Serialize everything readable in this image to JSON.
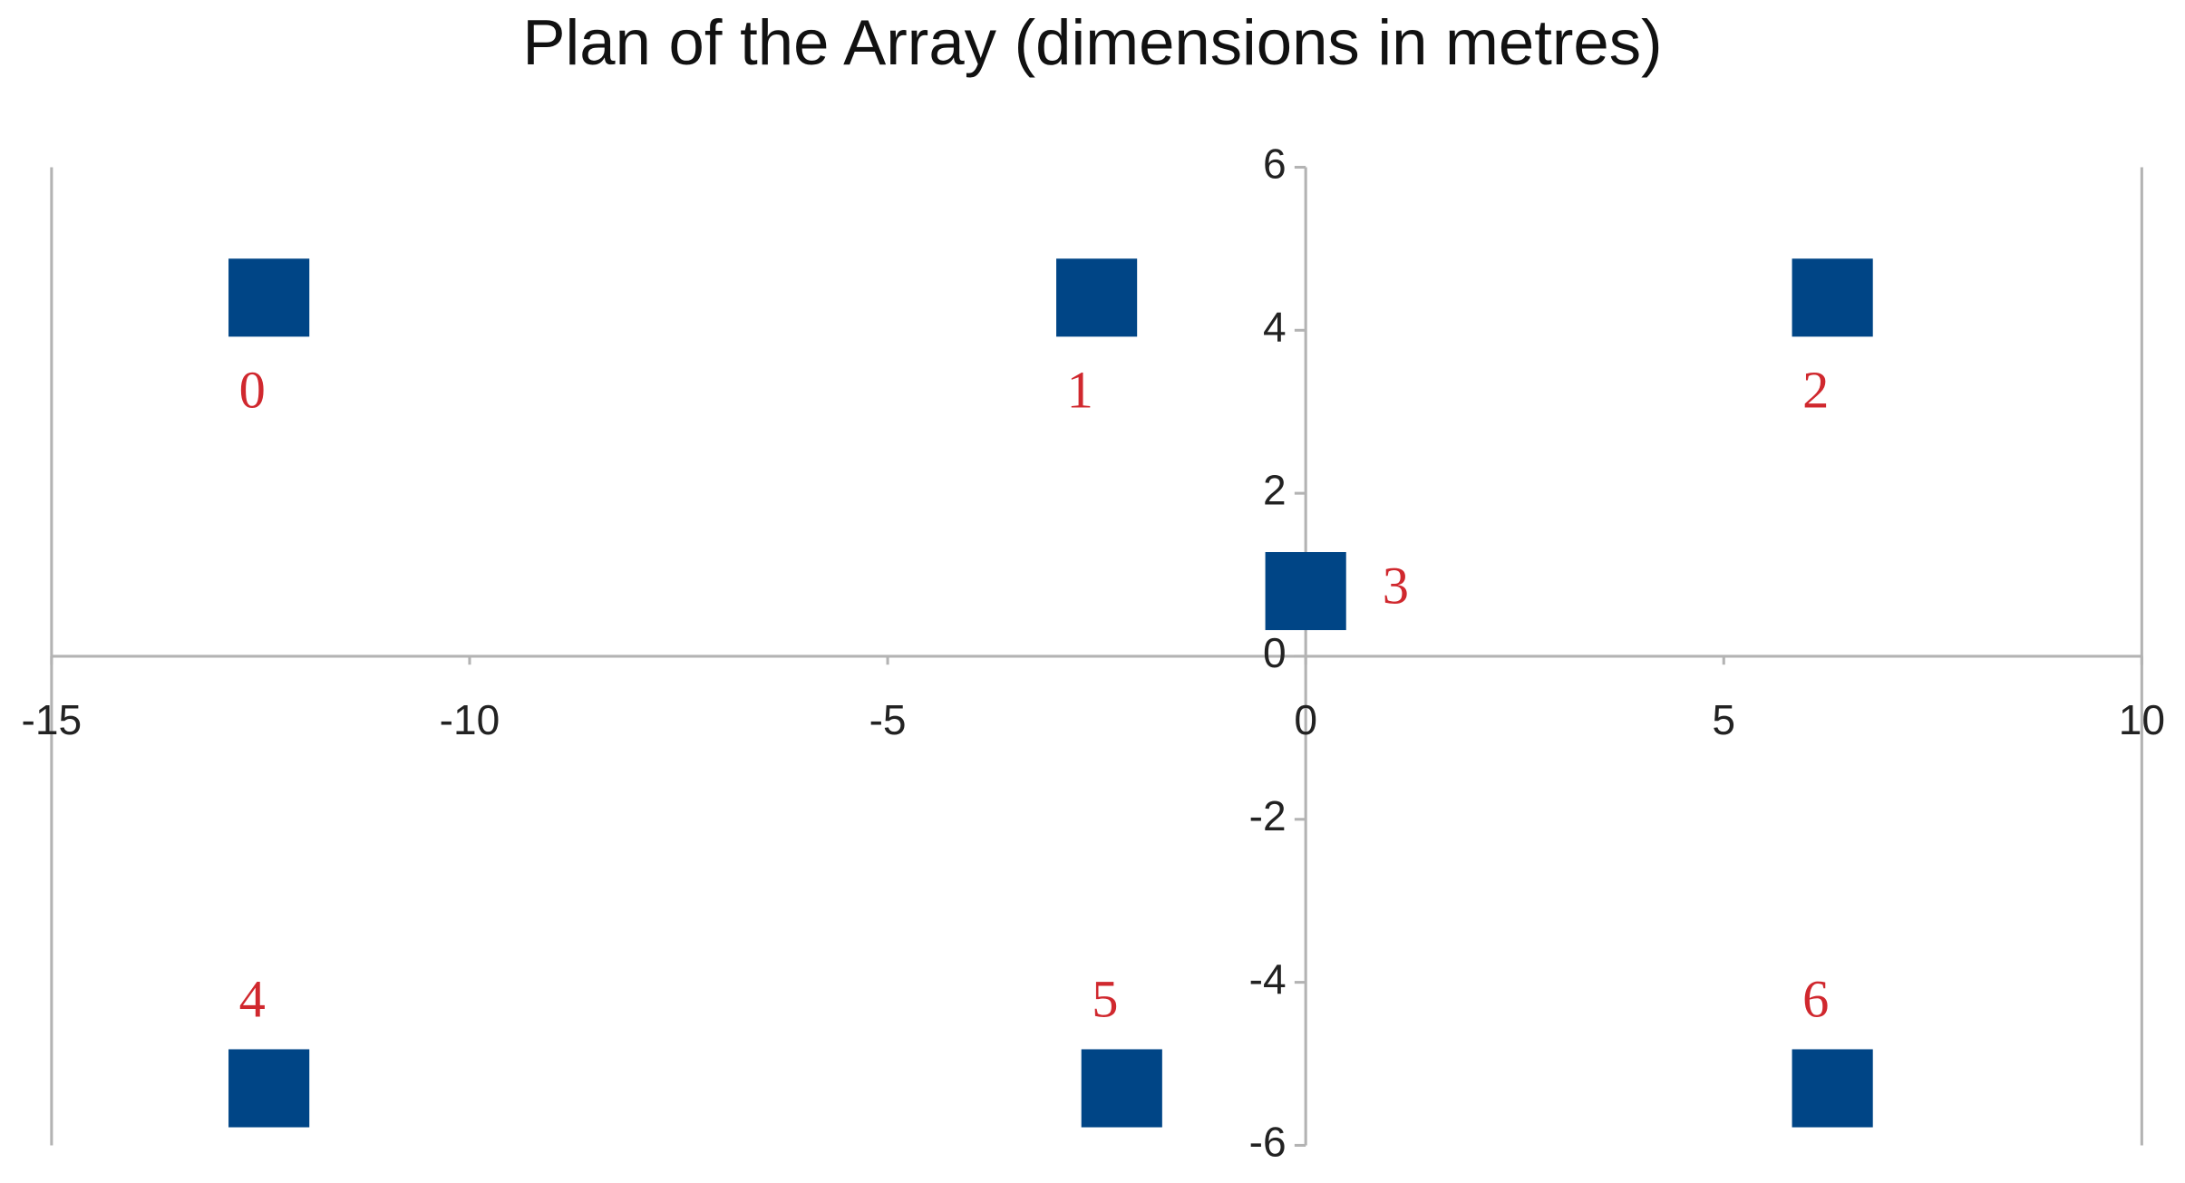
{
  "chart_data": {
    "type": "scatter",
    "title": "Plan of the Array (dimensions in metres)",
    "x": [
      -12.4,
      -2.5,
      6.3,
      0,
      -12.4,
      -2.2,
      6.3
    ],
    "values": [
      4.4,
      4.4,
      4.4,
      0.8,
      -5.3,
      -5.3,
      -5.3
    ],
    "point_labels": [
      "0",
      "1",
      "2",
      "3",
      "4",
      "5",
      "6"
    ],
    "color": "#004586",
    "label_color": "#d0282e",
    "marker": "square",
    "xlim": [
      -15,
      10
    ],
    "xticks": [
      -15,
      -10,
      -5,
      0,
      5,
      10
    ],
    "ylim": [
      -6,
      6
    ],
    "yticks": [
      -6,
      -4,
      -2,
      0,
      2,
      4,
      6
    ]
  }
}
